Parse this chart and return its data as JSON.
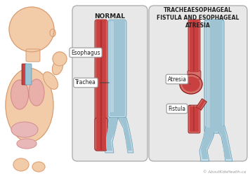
{
  "bg_color": "#ffffff",
  "panel_bg": "#e8e8e8",
  "panel_border": "#b0b0b0",
  "title_normal": "NORMAL",
  "title_fistula": "TRACHEAESOPHAGEAL\nFISTULA AND ESOPHAGEAL\nATRESIA",
  "esoph_outer": "#d4706a",
  "esoph_mid": "#c94040",
  "esoph_inner": "#b03030",
  "esoph_dark_line": "#8b1a1a",
  "trach_outer": "#c5dde8",
  "trach_mid": "#9ec4d4",
  "trach_inner": "#7aafc5",
  "trach_dark": "#5a9ab5",
  "skin_color": "#f2cba8",
  "skin_shadow": "#e8a878",
  "skin_outline": "#d4956a",
  "lung_fill": "#e8aaaa",
  "lung_border": "#d08080",
  "stomach_fill": "#e8b8b8",
  "trachea_baby_fill": "#9ec4d4",
  "label_bg": "#ffffff",
  "label_border": "#999999",
  "text_color": "#222222",
  "watermark": "© AboutKidsHealth.ca",
  "watermark_color": "#999999"
}
